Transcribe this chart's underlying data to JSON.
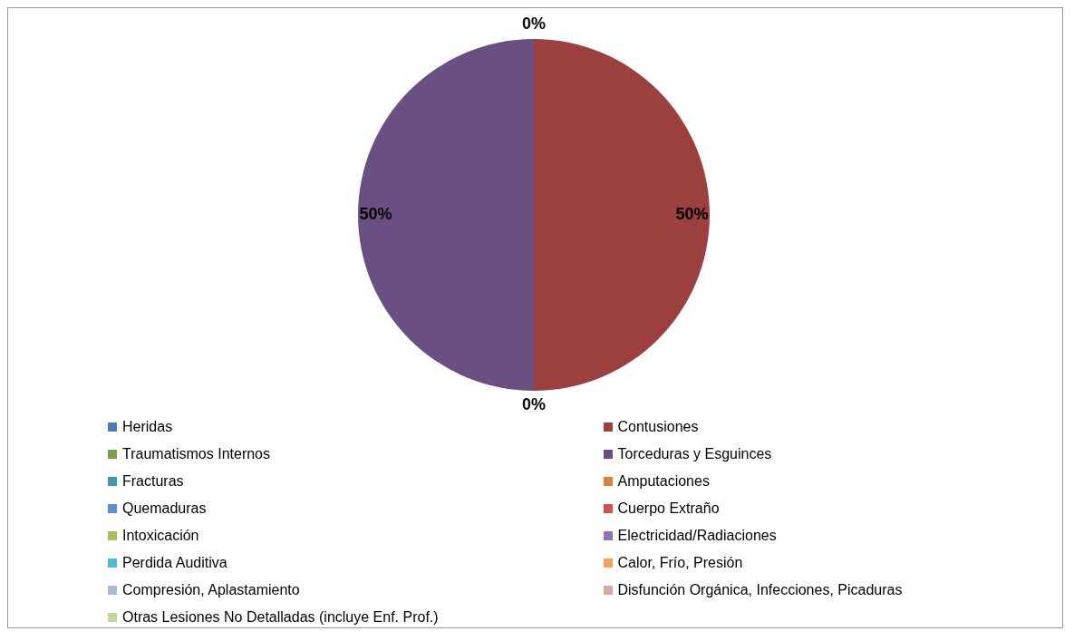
{
  "chart_data": {
    "type": "pie",
    "categories": [
      "Heridas",
      "Contusiones",
      "Traumatismos Internos",
      "Torceduras y Esguinces",
      "Fracturas",
      "Amputaciones",
      "Quemaduras",
      "Cuerpo Extraño",
      "Intoxicación",
      "Electricidad/Radiaciones",
      "Perdida Auditiva",
      "Calor, Frío, Presión",
      "Compresión, Aplastamiento",
      "Disfunción Orgánica, Infecciones, Picaduras",
      "Otras Lesiones No Detalladas (incluye Enf. Prof.)"
    ],
    "values": [
      0,
      50,
      0,
      50,
      0,
      0,
      0,
      0,
      0,
      0,
      0,
      0,
      0,
      0,
      0
    ],
    "colors": [
      "#4a7ebb",
      "#9b403e",
      "#7ea04a",
      "#6a5082",
      "#3f97ad",
      "#d9803a",
      "#5b8fd0",
      "#cf5350",
      "#a5c261",
      "#8e72b2",
      "#4fbad6",
      "#f8a05a",
      "#a9b9d6",
      "#d6a9a9",
      "#c3d69b"
    ],
    "value_labels": [
      "0%",
      "50%",
      "0%",
      "50%",
      null,
      null,
      null,
      null,
      null,
      null,
      null,
      null,
      null,
      null,
      null
    ],
    "legend": "bottom"
  }
}
